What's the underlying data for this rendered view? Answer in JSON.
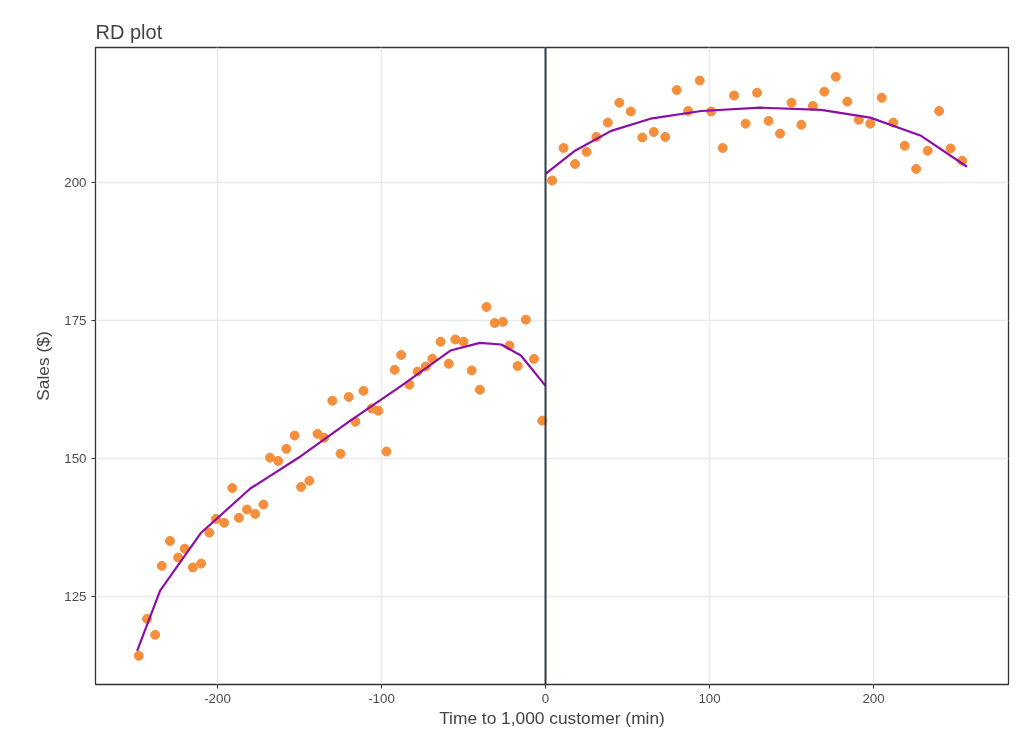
{
  "chart_data": {
    "type": "scatter",
    "title": "RD plot",
    "xlabel": "Time to 1,000 customer (min)",
    "ylabel": "Sales ($)",
    "xlim": [
      -274.4,
      282.3
    ],
    "ylim": [
      109.1,
      224.5
    ],
    "xticks": [
      -200,
      -100,
      0,
      100,
      200
    ],
    "yticks": [
      125,
      150,
      175,
      200
    ],
    "grid": true,
    "series": [
      {
        "marker": "circle",
        "color": "#f68f3c",
        "x": [
          -248,
          -243,
          -238,
          -234,
          -229,
          -224,
          -220,
          -215,
          -210,
          -205,
          -201,
          -196,
          -191,
          -187,
          -182,
          -177,
          -172,
          -168,
          -163,
          -158,
          -153,
          -149,
          -144,
          -139,
          -135,
          -130,
          -125,
          -120,
          -116,
          -111,
          -106,
          -102,
          -97,
          -92,
          -88,
          -83,
          -78,
          -73,
          -69,
          -64,
          -59,
          -55,
          -50,
          -45,
          -40,
          -36,
          -31,
          -26,
          -22,
          -17,
          -12,
          -7,
          -2
        ],
        "values": [
          114.3,
          121.0,
          118.1,
          130.6,
          135.1,
          132.1,
          133.7,
          130.3,
          131.0,
          136.6,
          139.1,
          138.4,
          144.7,
          139.3,
          140.8,
          140.0,
          141.7,
          150.2,
          149.6,
          151.8,
          154.2,
          144.9,
          146.0,
          154.5,
          153.8,
          160.5,
          150.9,
          161.2,
          156.7,
          162.3,
          159.1,
          158.7,
          151.3,
          166.1,
          168.8,
          163.4,
          165.8,
          166.7,
          168.1,
          171.2,
          167.2,
          171.6,
          171.2,
          166.0,
          162.5,
          177.5,
          174.6,
          174.8,
          170.5,
          166.8,
          175.2,
          168.1,
          156.9
        ]
      },
      {
        "marker": "circle",
        "color": "#f68f3c",
        "x": [
          4,
          11,
          18,
          25,
          31,
          38,
          45,
          52,
          59,
          66,
          73,
          80,
          87,
          94,
          101,
          108,
          115,
          122,
          129,
          136,
          143,
          150,
          156,
          163,
          170,
          177,
          184,
          191,
          198,
          205,
          212,
          219,
          226,
          233,
          240,
          247,
          254
        ],
        "values": [
          200.4,
          206.3,
          203.4,
          205.6,
          208.3,
          210.9,
          214.5,
          212.9,
          208.2,
          209.2,
          208.3,
          216.8,
          213.0,
          218.5,
          212.9,
          206.3,
          215.8,
          210.7,
          216.3,
          211.2,
          208.9,
          214.5,
          210.5,
          213.9,
          216.5,
          219.2,
          214.7,
          211.4,
          210.7,
          215.4,
          210.9,
          206.7,
          202.5,
          205.8,
          213.0,
          206.2,
          204.0
        ]
      },
      {
        "type": "line",
        "color": "#8b0fa4",
        "line_style": "solid",
        "x": [
          -249,
          -235,
          -210,
          -180,
          -149,
          -119,
          -88,
          -58,
          -40,
          -27,
          -15,
          0
        ],
        "values": [
          115.2,
          126.1,
          136.6,
          144.6,
          150.5,
          156.9,
          163.2,
          169.6,
          171.0,
          170.7,
          168.7,
          163.2
        ]
      },
      {
        "type": "line",
        "color": "#8b0fa4",
        "line_style": "solid",
        "x": [
          0,
          18,
          40,
          64,
          95,
          131,
          168,
          198,
          229,
          257
        ],
        "values": [
          201.6,
          205.8,
          209.4,
          211.6,
          213.0,
          213.6,
          213.2,
          211.8,
          208.5,
          202.9
        ]
      }
    ],
    "ref_lines": [
      {
        "axis": "x",
        "value": 0,
        "label": null,
        "color": "#2f3b47"
      }
    ]
  }
}
